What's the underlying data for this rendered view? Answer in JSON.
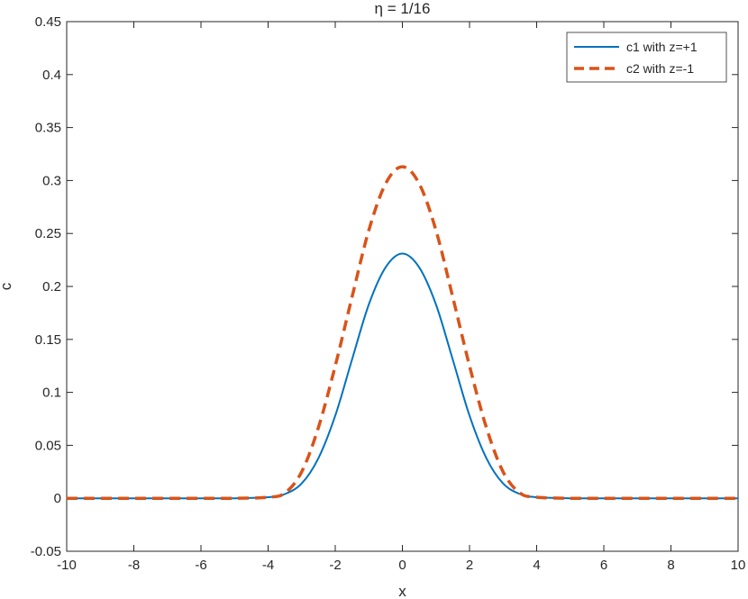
{
  "chart_data": {
    "type": "line",
    "title": "η = 1/16",
    "xlabel": "x",
    "ylabel": "c",
    "xlim": [
      -10,
      10
    ],
    "ylim": [
      -0.05,
      0.45
    ],
    "x_ticks": [
      -10,
      -8,
      -6,
      -4,
      -2,
      0,
      2,
      4,
      6,
      8,
      10
    ],
    "x_tick_labels": [
      "-10",
      "-8",
      "-6",
      "-4",
      "-2",
      "0",
      "2",
      "4",
      "6",
      "8",
      "10"
    ],
    "y_ticks": [
      -0.05,
      0,
      0.05,
      0.1,
      0.15,
      0.2,
      0.25,
      0.3,
      0.35,
      0.4,
      0.45
    ],
    "y_tick_labels": [
      "-0.05",
      "0",
      "0.05",
      "0.1",
      "0.15",
      "0.2",
      "0.25",
      "0.3",
      "0.35",
      "0.4",
      "0.45"
    ],
    "grid": false,
    "legend_position": "top-right",
    "x": [
      -10,
      -8,
      -6,
      -5,
      -4,
      -3.5,
      -3,
      -2.5,
      -2,
      -1.5,
      -1,
      -0.5,
      0,
      0.5,
      1,
      1.5,
      2,
      2.5,
      3,
      3.5,
      4,
      5,
      6,
      8,
      10
    ],
    "series": [
      {
        "name": "c1 with z=+1",
        "color": "#0072BD",
        "style": "solid",
        "values": [
          0,
          0,
          0,
          0,
          0.001,
          0.004,
          0.014,
          0.038,
          0.078,
          0.131,
          0.183,
          0.218,
          0.231,
          0.218,
          0.183,
          0.131,
          0.078,
          0.038,
          0.014,
          0.004,
          0.001,
          0,
          0,
          0,
          0
        ]
      },
      {
        "name": "c2 with z=-1",
        "color": "#D95319",
        "style": "dashed",
        "values": [
          0,
          0,
          0,
          0,
          0.001,
          0.005,
          0.025,
          0.067,
          0.125,
          0.19,
          0.253,
          0.297,
          0.313,
          0.297,
          0.253,
          0.19,
          0.125,
          0.067,
          0.025,
          0.005,
          0.001,
          0,
          0,
          0,
          0
        ]
      }
    ]
  }
}
